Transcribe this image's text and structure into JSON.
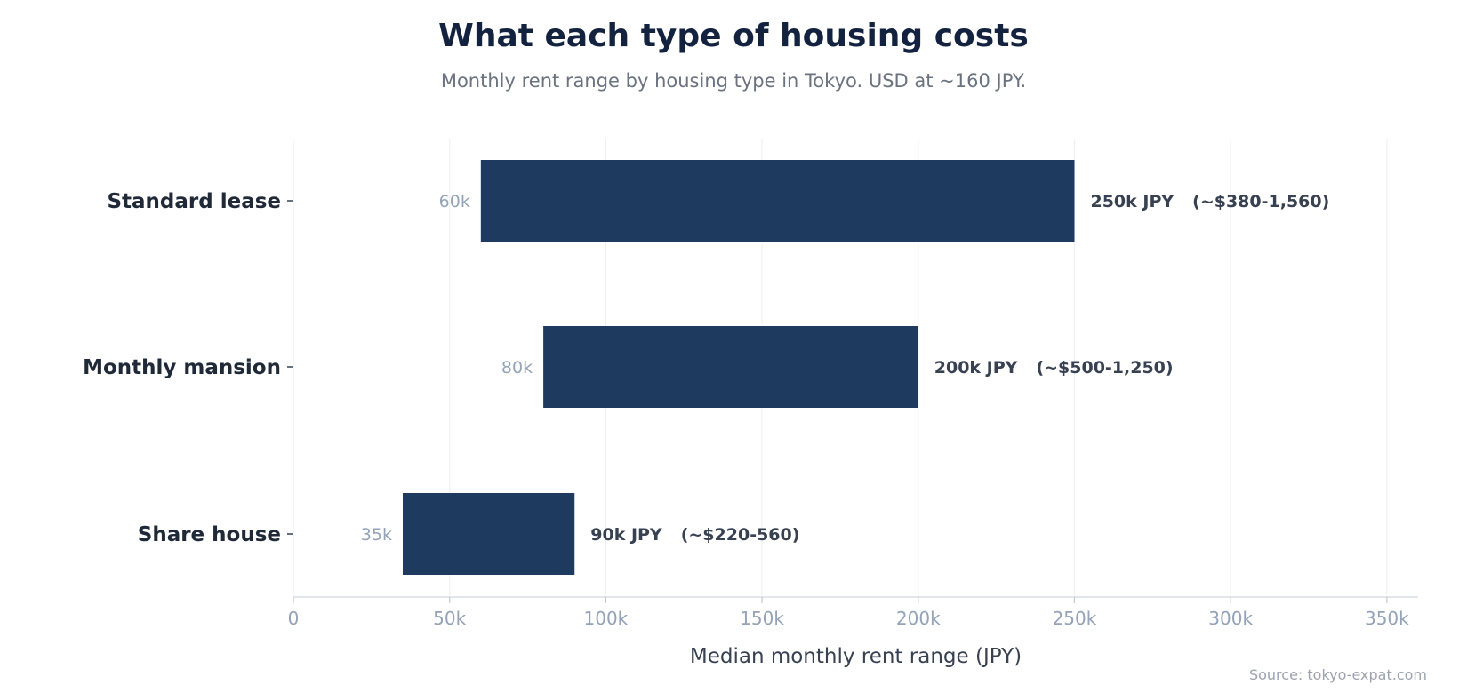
{
  "chart_data": {
    "type": "bar",
    "title": "What each type of housing costs",
    "subtitle": "Monthly rent range by housing type in Tokyo. USD at ~160 JPY.",
    "xlabel": "Median monthly rent range (JPY)",
    "ylabel": "",
    "orientation": "horizontal",
    "categories": [
      "Standard lease",
      "Monthly mansion",
      "Share house"
    ],
    "series": [
      {
        "values": [
          [
            60000,
            250000
          ],
          [
            80000,
            200000
          ],
          [
            35000,
            90000
          ]
        ]
      }
    ],
    "low_labels": [
      "60k",
      "80k",
      "35k"
    ],
    "high_labels": [
      "250k JPY",
      "200k JPY",
      "90k JPY"
    ],
    "usd_labels": [
      "(~$380-1,560)",
      "(~$500-1,250)",
      "(~$220-560)"
    ],
    "xlim": [
      0,
      360000
    ],
    "xticks": [
      0,
      50000,
      100000,
      150000,
      200000,
      250000,
      300000,
      350000
    ],
    "xtick_labels": [
      "0",
      "50k",
      "100k",
      "150k",
      "200k",
      "250k",
      "300k",
      "350k"
    ],
    "grid": true,
    "bar_color": "#1f3a5f"
  },
  "source": "Source: tokyo-expat.com"
}
